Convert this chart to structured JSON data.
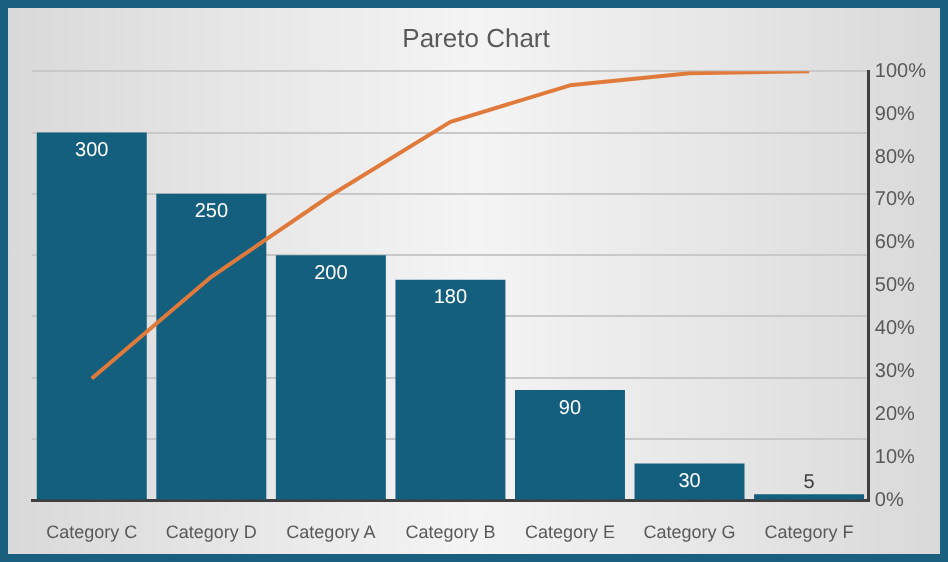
{
  "chart_data": {
    "type": "bar",
    "title": "Pareto Chart",
    "categories": [
      "Category C",
      "Category D",
      "Category A",
      "Category B",
      "Category E",
      "Category G",
      "Category F"
    ],
    "series": [
      {
        "color": "#155f7e",
        "values": [
          300,
          250,
          200,
          180,
          90,
          30,
          5
        ],
        "value_labels": [
          "300",
          "250",
          "200",
          "180",
          "90",
          "30",
          "5"
        ]
      },
      {
        "type": "line",
        "axis": "y2",
        "color": "#e07a3a",
        "values": [
          28.4,
          52.1,
          71.1,
          88.2,
          96.7,
          99.5,
          100
        ]
      }
    ],
    "ylim": [
      0,
      350
    ],
    "yticks": [
      {
        "value": 0,
        "label": null
      },
      {
        "value": 50,
        "label": null
      },
      {
        "value": 100,
        "label": null
      },
      {
        "value": 150,
        "label": null
      },
      {
        "value": 200,
        "label": null
      },
      {
        "value": 250,
        "label": null
      },
      {
        "value": 300,
        "label": null
      },
      {
        "value": 350,
        "label": null
      }
    ],
    "y2lim": [
      0,
      100
    ],
    "y2ticks": [
      {
        "value": 0,
        "label": "0%"
      },
      {
        "value": 10,
        "label": "10%"
      },
      {
        "value": 20,
        "label": "20%"
      },
      {
        "value": 30,
        "label": "30%"
      },
      {
        "value": 40,
        "label": "40%"
      },
      {
        "value": 50,
        "label": "50%"
      },
      {
        "value": 60,
        "label": "60%"
      },
      {
        "value": 70,
        "label": "70%"
      },
      {
        "value": 80,
        "label": "80%"
      },
      {
        "value": 90,
        "label": "90%"
      },
      {
        "value": 100,
        "label": "100%"
      }
    ],
    "grid": "y",
    "marker": "none"
  }
}
